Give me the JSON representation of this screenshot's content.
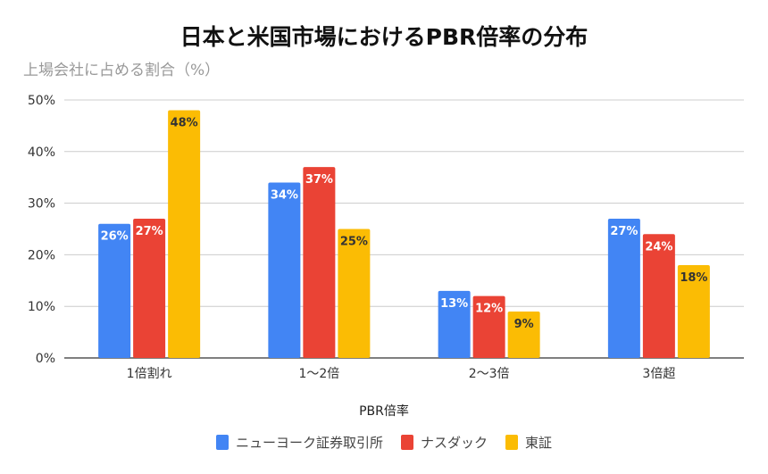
{
  "chart_data": {
    "type": "bar",
    "title": "日本と米国市場におけるPBR倍率の分布",
    "ylabel": "上場会社に占める割合（%）",
    "xlabel": "PBR倍率",
    "categories": [
      "1倍割れ",
      "1〜2倍",
      "2〜3倍",
      "3倍超"
    ],
    "series": [
      {
        "name": "ニューヨーク証券取引所",
        "color": "#4285F4",
        "values": [
          26,
          34,
          13,
          27
        ]
      },
      {
        "name": "ナスダック",
        "color": "#EA4335",
        "values": [
          27,
          37,
          12,
          24
        ]
      },
      {
        "name": "東証",
        "color": "#FBBC04",
        "values": [
          48,
          25,
          9,
          18
        ]
      }
    ],
    "ylim": [
      0,
      50
    ],
    "yticks": [
      "0%",
      "10%",
      "20%",
      "30%",
      "40%",
      "50%"
    ],
    "grid": true,
    "legend": "bottom"
  }
}
